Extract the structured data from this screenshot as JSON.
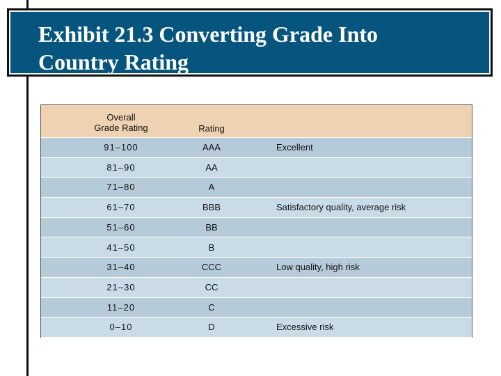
{
  "title": {
    "line1": "Exhibit 21.3  Converting Grade Into",
    "line2": "Country Rating"
  },
  "table": {
    "header": {
      "col1_line1": "Overall",
      "col1_line2": "Grade Rating",
      "col2": "Rating"
    },
    "rows": [
      {
        "grade": "91–100",
        "rating": "AAA",
        "desc": "Excellent"
      },
      {
        "grade": "81–90",
        "rating": "AA",
        "desc": ""
      },
      {
        "grade": "71–80",
        "rating": "A",
        "desc": ""
      },
      {
        "grade": "61–70",
        "rating": "BBB",
        "desc": "Satisfactory quality, average risk"
      },
      {
        "grade": "51–60",
        "rating": "BB",
        "desc": ""
      },
      {
        "grade": "41–50",
        "rating": "B",
        "desc": ""
      },
      {
        "grade": "31–40",
        "rating": "CCC",
        "desc": "Low quality, high risk"
      },
      {
        "grade": "21–30",
        "rating": "CC",
        "desc": ""
      },
      {
        "grade": "11–20",
        "rating": "C",
        "desc": ""
      },
      {
        "grade": "0–10",
        "rating": "D",
        "desc": "Excessive risk"
      }
    ]
  },
  "colors": {
    "title_bg": "#06557e",
    "header_bg": "#efd2b2",
    "row_dark": "#b6cbda",
    "row_light": "#c9dbe6"
  }
}
